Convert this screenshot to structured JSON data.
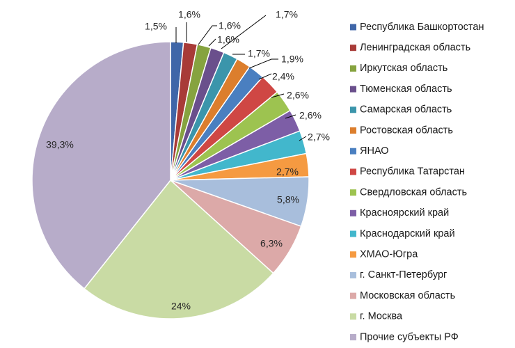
{
  "chart_data": {
    "type": "pie",
    "start_angle_deg": 0,
    "direction": "clockwise",
    "legend_position": "right",
    "slices": [
      {
        "name": "Республика Башкортостан",
        "value": 1.5,
        "label": "1,5%",
        "color": "#3f66a8"
      },
      {
        "name": "Ленинградская область",
        "value": 1.6,
        "label": "1,6%",
        "color": "#a83b38"
      },
      {
        "name": "Иркутская область",
        "value": 1.6,
        "label": "1,6%",
        "color": "#86a33f"
      },
      {
        "name": "Тюменская область",
        "value": 1.6,
        "label": "1,6%",
        "color": "#6a4f8c"
      },
      {
        "name": "Самарская область",
        "value": 1.7,
        "label": "1,7%",
        "color": "#3b95ab"
      },
      {
        "name": "Ростовская область",
        "value": 1.7,
        "label": "1,7%",
        "color": "#dc7e2d"
      },
      {
        "name": "ЯНАО",
        "value": 1.9,
        "label": "1,9%",
        "color": "#4a7fc0"
      },
      {
        "name": "Республика Татарстан",
        "value": 2.4,
        "label": "2,4%",
        "color": "#cf4744"
      },
      {
        "name": "Свердловская область",
        "value": 2.6,
        "label": "2,6%",
        "color": "#9dc350"
      },
      {
        "name": "Красноярский край",
        "value": 2.6,
        "label": "2,6%",
        "color": "#7d5ea6"
      },
      {
        "name": "Краснодарский край",
        "value": 2.7,
        "label": "2,7%",
        "color": "#42b7cc"
      },
      {
        "name": "ХМАО-Югра",
        "value": 2.7,
        "label": "2,7%",
        "color": "#f59a41"
      },
      {
        "name": "г. Санкт-Петербург",
        "value": 5.8,
        "label": "5,8%",
        "color": "#a8bedc"
      },
      {
        "name": "Московская область",
        "value": 6.3,
        "label": "6,3%",
        "color": "#dca9a8"
      },
      {
        "name": "г. Москва",
        "value": 24,
        "label": "24%",
        "color": "#c9dba4"
      },
      {
        "name": "Прочие субъекты РФ",
        "value": 39.3,
        "label": "39,3%",
        "color": "#b7acc9"
      }
    ]
  }
}
